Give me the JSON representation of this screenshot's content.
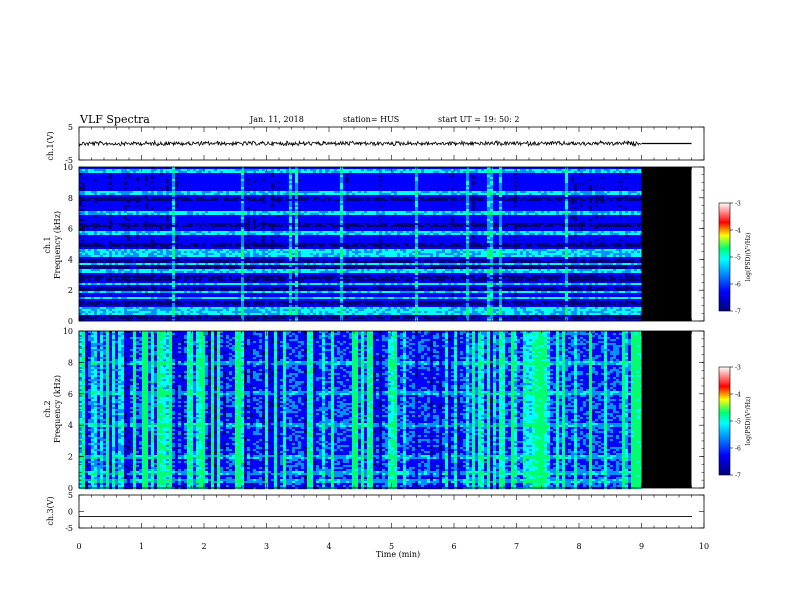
{
  "header": {
    "title": "VLF Spectra",
    "date": "Jan. 11, 2018",
    "station": "station= HUS",
    "start": "start  UT =   19: 50: 2"
  },
  "chart_data": [
    {
      "type": "line",
      "name": "ch1-waveform",
      "ylabel": "ch.1(V)",
      "ylim": [
        -5,
        5
      ],
      "yticks": [
        "5",
        "-5"
      ],
      "x_range_min": [
        0,
        10
      ],
      "data_end_min": 9.0,
      "level_mean_V": 0.0
    },
    {
      "type": "heatmap",
      "name": "ch1-spectrogram",
      "ylabel_line1": "ch.1",
      "ylabel_line2": "Frequency  (kHz)",
      "ylim": [
        0,
        10
      ],
      "yticks": [
        "0",
        "2",
        "4",
        "6",
        "8",
        "10"
      ],
      "x_range_min": [
        0,
        10
      ],
      "data_end_min": 9.0,
      "no_data_fill": "#000000",
      "bright_bands_kHz": [
        0.2,
        0.5,
        0.8,
        1.5,
        1.9,
        2.4,
        3.3,
        3.7,
        4.3,
        4.6,
        5.7,
        7.0,
        8.3,
        9.7
      ],
      "dark_bands_kHz": [
        0.3,
        1.2,
        2.1,
        2.8,
        3.5,
        3.9,
        4.9,
        6.2,
        7.9
      ],
      "colorbar": {
        "label": "log(PSD)(V²/Hz)",
        "min": -7,
        "max": -3,
        "ticks": [
          "-3",
          "-4",
          "-5",
          "-6",
          "-7"
        ]
      }
    },
    {
      "type": "heatmap",
      "name": "ch2-spectrogram",
      "ylabel_line1": "ch.2",
      "ylabel_line2": "Frequency  (kHz)",
      "ylim": [
        0,
        10
      ],
      "yticks": [
        "0",
        "2",
        "4",
        "6",
        "8",
        "10"
      ],
      "x_range_min": [
        0,
        10
      ],
      "data_end_min": 9.0,
      "no_data_fill": "#000000",
      "bright_bands_kHz": [
        0.5,
        1.0,
        2.0,
        4.0,
        6.0,
        8.0
      ],
      "colorbar": {
        "label": "log(PSD)(V²/Hz)",
        "min": -7,
        "max": -3,
        "ticks": [
          "-3",
          "-4",
          "-5",
          "-6",
          "-7"
        ]
      }
    },
    {
      "type": "line",
      "name": "ch3-waveform",
      "ylabel": "ch.3(V)",
      "ylim": [
        -5,
        5
      ],
      "yticks": [
        "5",
        "0",
        "-5"
      ],
      "x_range_min": [
        0,
        10
      ],
      "level_mean_V": -1.5
    }
  ],
  "xaxis": {
    "label": "Time  (min)",
    "ticks": [
      "0",
      "1",
      "2",
      "3",
      "4",
      "5",
      "6",
      "7",
      "8",
      "9",
      "10"
    ]
  },
  "colors": {
    "cmap": [
      "#00007a",
      "#0000ff",
      "#0090ff",
      "#00ffff",
      "#00ff70",
      "#ffff00",
      "#ff0000",
      "#ff9090",
      "#ffffff"
    ]
  }
}
